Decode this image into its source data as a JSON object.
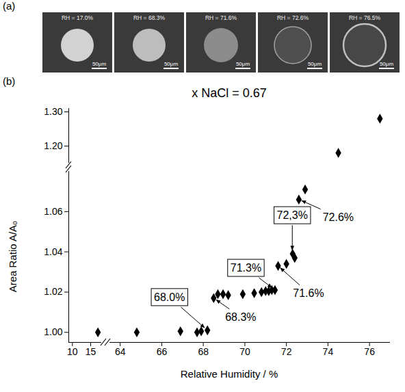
{
  "panel_labels": [
    "(a)",
    "(b)"
  ],
  "images": [
    {
      "label": "RH = 17.0%",
      "scale_bar": "50μm"
    },
    {
      "label": "RH = 68.3%",
      "scale_bar": "50μm"
    },
    {
      "label": "RH = 71.6%",
      "scale_bar": "50μm"
    },
    {
      "label": "RH = 72.6%",
      "scale_bar": "50μm"
    },
    {
      "label": "RH = 76.5%",
      "scale_bar": "50μm"
    }
  ],
  "chart_data": {
    "type": "scatter",
    "title": "x NaCl = 0.67",
    "x_label": "Relative Humidity / %",
    "y_label": "Area Ratio A/A₀",
    "x": [
      17.0,
      64.8,
      66.9,
      67.7,
      67.9,
      68.2,
      68.5,
      68.7,
      68.95,
      69.2,
      69.9,
      70.45,
      70.8,
      71.0,
      71.15,
      71.3,
      71.45,
      71.6,
      72.0,
      72.3,
      72.4,
      72.6,
      72.9,
      74.5,
      76.5
    ],
    "values": [
      1.0,
      1.0,
      1.0005,
      1.0,
      1.0005,
      1.001,
      1.017,
      1.019,
      1.019,
      1.0185,
      1.019,
      1.0195,
      1.02,
      1.0205,
      1.0205,
      1.021,
      1.021,
      1.033,
      1.034,
      1.039,
      1.037,
      1.066,
      1.071,
      1.18,
      1.28
    ],
    "color": "#000000",
    "marker": "diamond",
    "grid": false,
    "xlim": [
      [
        9,
        18
      ],
      [
        63.5,
        77
      ]
    ],
    "xticks": [
      [
        10,
        15
      ],
      [
        64,
        66,
        68,
        70,
        72,
        74,
        76
      ]
    ],
    "ylim": [
      [
        0.995,
        1.08
      ],
      [
        1.15,
        1.31
      ]
    ],
    "yticks": [
      [
        {
          "value": 1.0,
          "label": "1.00"
        },
        {
          "value": 1.02,
          "label": "1.02"
        },
        {
          "value": 1.04,
          "label": "1.04"
        },
        {
          "value": 1.06,
          "label": "1.06"
        }
      ],
      [
        {
          "value": 1.2,
          "label": "1.20"
        },
        {
          "value": 1.3,
          "label": "1.30"
        }
      ]
    ],
    "annotations": [
      {
        "text": "68.0%",
        "x": 68.2,
        "y": 1.001,
        "boxed": true
      },
      {
        "text": "68.3%",
        "x": 68.5,
        "y": 1.017,
        "boxed": false
      },
      {
        "text": "71.3%",
        "x": 71.45,
        "y": 1.021,
        "boxed": true
      },
      {
        "text": "71.6%",
        "x": 71.6,
        "y": 1.033,
        "boxed": false
      },
      {
        "text": "72,3%",
        "x": 72.3,
        "y": 1.039,
        "boxed": true
      },
      {
        "text": "72.6%",
        "x": 72.6,
        "y": 1.066,
        "boxed": false
      }
    ]
  }
}
